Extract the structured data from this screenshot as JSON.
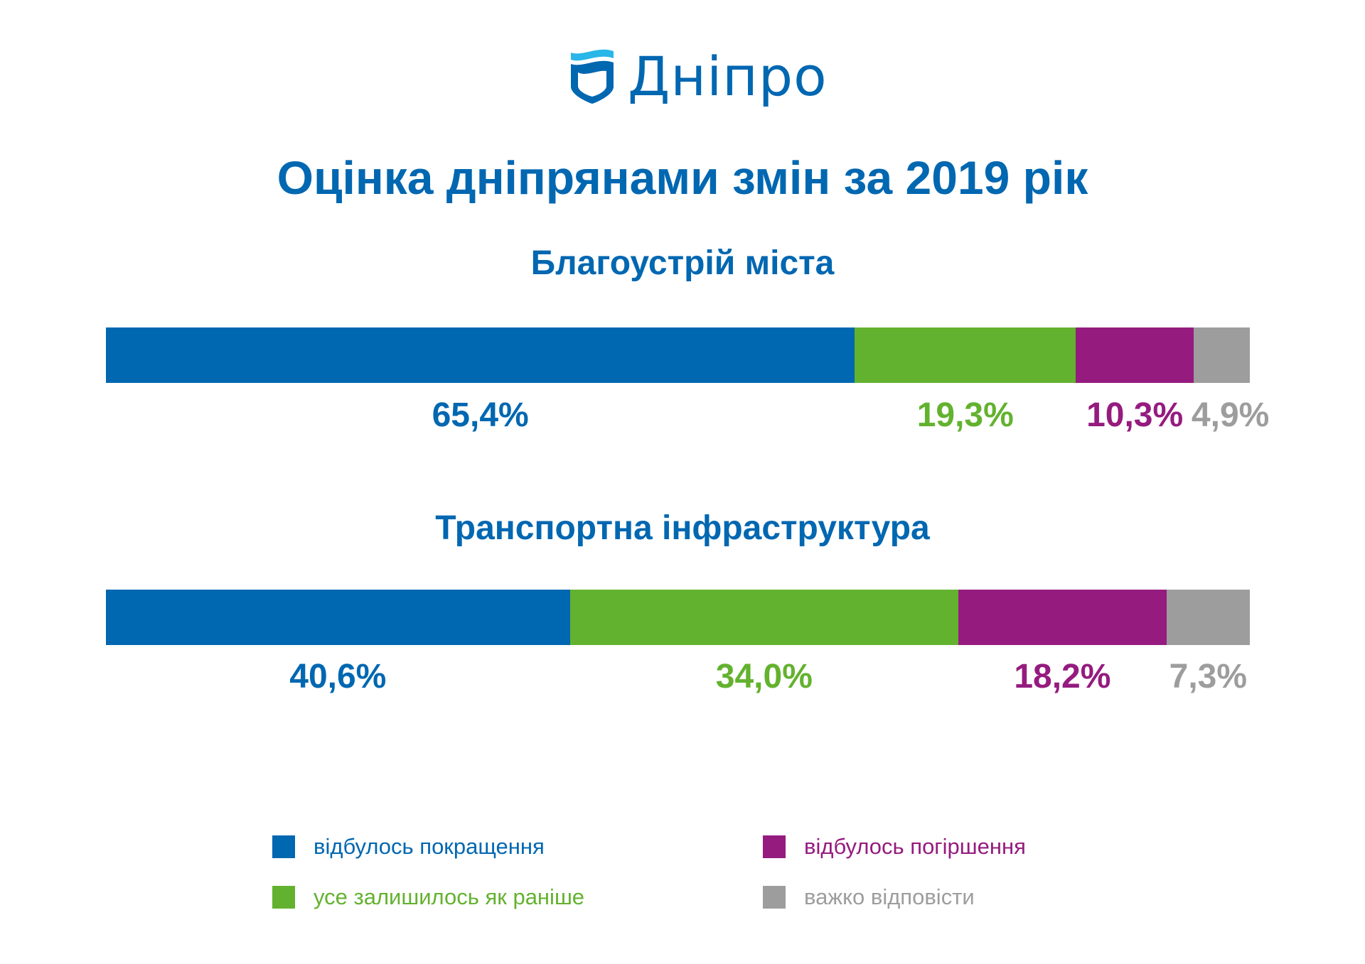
{
  "logo": {
    "text": "Дніпро",
    "colors": {
      "wave": "#29b6e8",
      "shield": "#0067b1"
    }
  },
  "chart_data": {
    "type": "bar",
    "stacked": true,
    "orientation": "horizontal",
    "title": "Оцінка дніпрянами змін за 2019 рік",
    "xlim": [
      0,
      100
    ],
    "grid": false,
    "legend_placement": "bottom",
    "series": [
      {
        "name": "відбулось покращення",
        "color": "#0067b1"
      },
      {
        "name": "усе залишилось як раніше",
        "color": "#63b22f"
      },
      {
        "name": "відбулось погіршення",
        "color": "#951b7f"
      },
      {
        "name": "важко відповісти",
        "color": "#9d9d9d"
      }
    ],
    "charts": [
      {
        "subtitle": "Благоустрій міста",
        "values": [
          65.4,
          19.3,
          10.3,
          4.9
        ],
        "labels": [
          "65,4%",
          "19,3%",
          "10,3%",
          "4,9%"
        ]
      },
      {
        "subtitle": "Транспортна інфраструктура",
        "values": [
          40.6,
          34.0,
          18.2,
          7.3
        ],
        "labels": [
          "40,6%",
          "34,0%",
          "18,2%",
          "7,3%"
        ]
      }
    ]
  }
}
